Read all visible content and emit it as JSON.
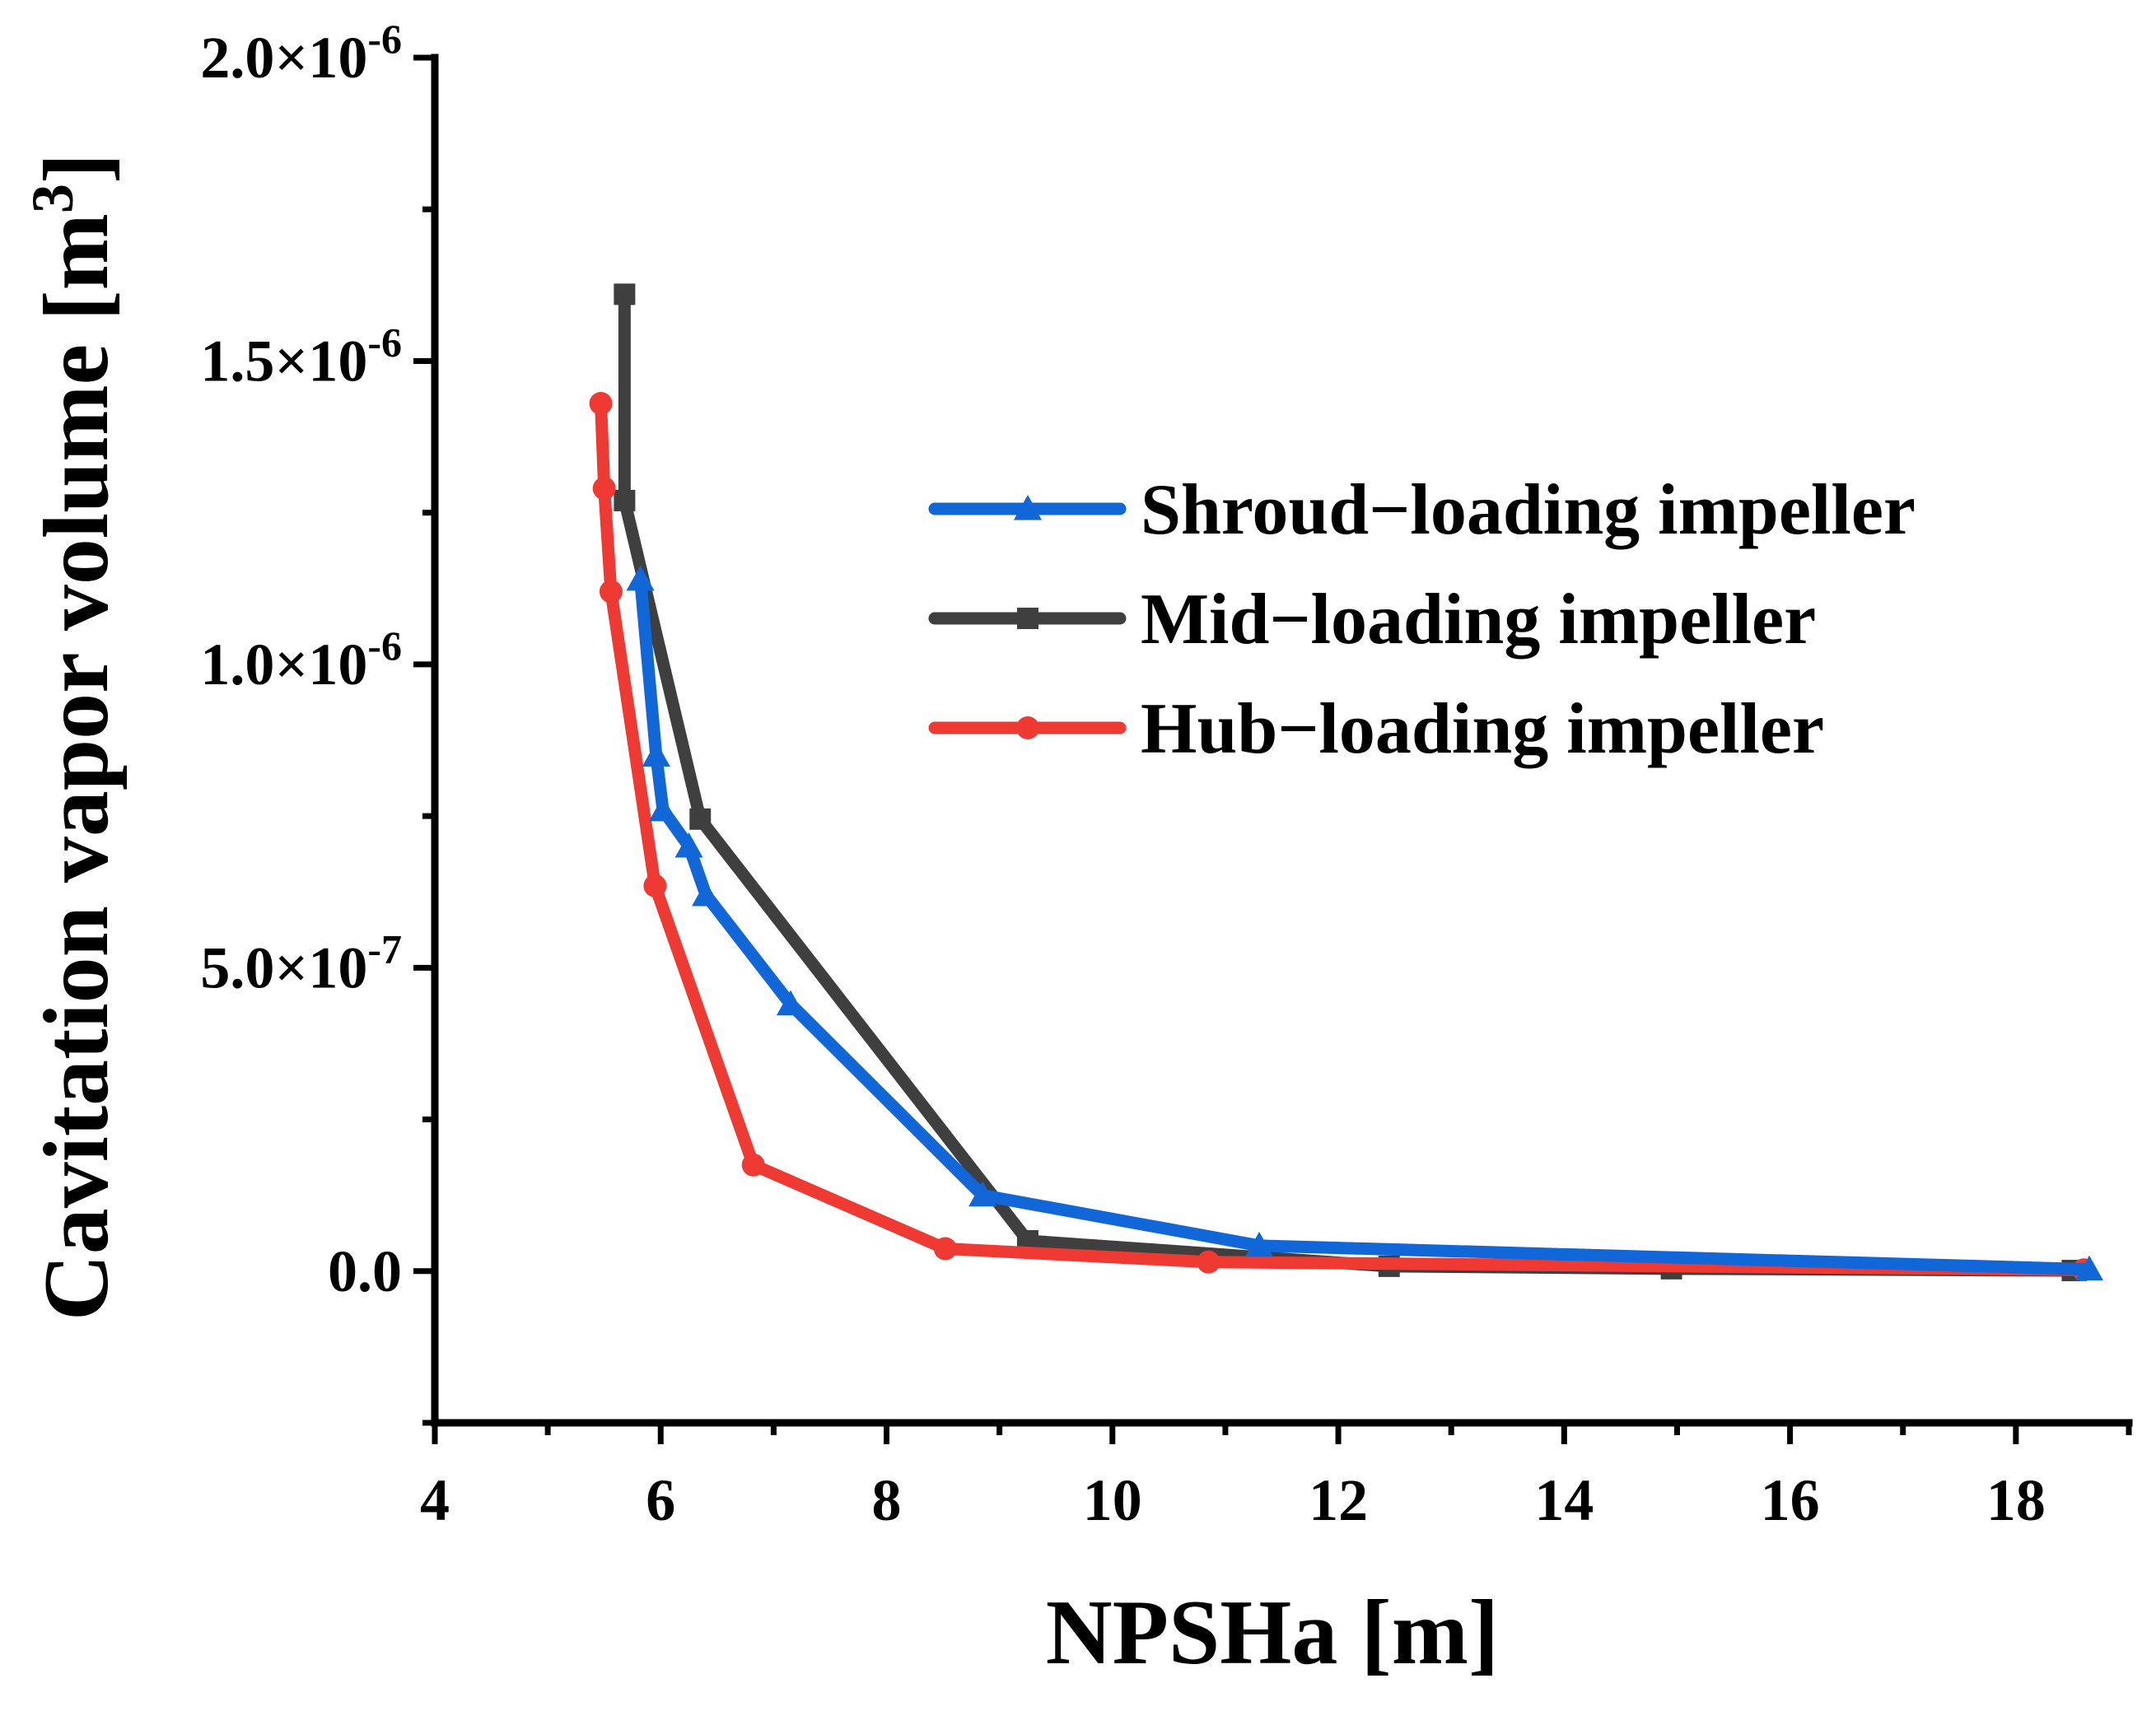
{
  "chart_data": {
    "type": "line",
    "title": "",
    "xlabel": "NPSHa [m]",
    "ylabel": "Cavitation vapor volume [m",
    "ylabel_superscript": "3",
    "ylabel_close": "]",
    "xlim": [
      4,
      19
    ],
    "ylim": [
      -2.5e-07,
      2e-06
    ],
    "x_ticks": [
      4,
      6,
      8,
      10,
      12,
      14,
      16,
      18
    ],
    "x_tick_labels": [
      "4",
      "6",
      "8",
      "10",
      "12",
      "14",
      "16",
      "18"
    ],
    "y_ticks": [
      0,
      5e-07,
      1e-06,
      1.5e-06,
      2e-06
    ],
    "y_tick_labels": [
      {
        "mantissa": "0.0",
        "exp": ""
      },
      {
        "mantissa": "5.0×10",
        "exp": "-7"
      },
      {
        "mantissa": "1.0×10",
        "exp": "-6"
      },
      {
        "mantissa": "1.5×10",
        "exp": "-6"
      },
      {
        "mantissa": "2.0×10",
        "exp": "-6"
      }
    ],
    "grid": false,
    "legend_position": "top-right",
    "series": [
      {
        "name": "Shroud−loading impeller",
        "color": "#1167d8",
        "marker": "triangle",
        "x": [
          5.82,
          5.96,
          6.02,
          6.25,
          6.4,
          7.15,
          8.85,
          11.3,
          18.65
        ],
        "y": [
          1.14e-06,
          8.5e-07,
          7.6e-07,
          7e-07,
          6.2e-07,
          4.4e-07,
          1.25e-07,
          4.2e-08,
          3e-09
        ]
      },
      {
        "name": "Mid−loading impeller",
        "color": "#3f3f3f",
        "marker": "square",
        "x": [
          5.68,
          5.68,
          6.35,
          9.25,
          12.45,
          14.95,
          18.5
        ],
        "y": [
          1.61e-06,
          1.27e-06,
          7.45e-07,
          5e-08,
          8e-09,
          4e-09,
          1e-09
        ]
      },
      {
        "name": "Hub−loading impeller",
        "color": "#ee3a33",
        "marker": "circle",
        "x": [
          5.47,
          5.5,
          5.56,
          5.95,
          6.82,
          8.52,
          10.85,
          18.6
        ],
        "y": [
          1.43e-06,
          1.29e-06,
          1.12e-06,
          6.35e-07,
          1.75e-07,
          3.7e-08,
          1.5e-08,
          2e-09
        ]
      }
    ]
  }
}
